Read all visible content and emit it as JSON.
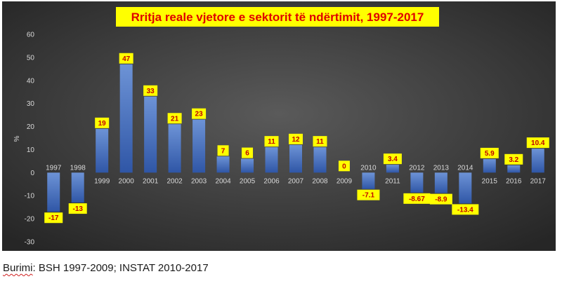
{
  "chart_data": {
    "type": "bar",
    "title": "Rritja reale vjetore e sektorit të ndërtimit, 1997-2017",
    "xlabel": "",
    "ylabel": "%",
    "ylim": [
      -30,
      60
    ],
    "yticks": [
      60,
      50,
      40,
      30,
      20,
      10,
      0,
      -10,
      -20,
      -30
    ],
    "grid": false,
    "legend": "none",
    "categories": [
      "1997",
      "1998",
      "1999",
      "2000",
      "2001",
      "2002",
      "2003",
      "2004",
      "2005",
      "2006",
      "2007",
      "2008",
      "2009",
      "2010",
      "2011",
      "2012",
      "2013",
      "2014",
      "2015",
      "2016",
      "2017"
    ],
    "values": [
      -17,
      -13,
      19,
      47,
      33,
      21,
      23,
      7,
      6,
      11,
      12,
      11,
      0,
      -7.1,
      3.4,
      -8.67,
      -8.9,
      -13.4,
      5.9,
      3.2,
      10.4
    ],
    "data_labels": [
      "-17",
      "-13",
      "19",
      "47",
      "33",
      "21",
      "23",
      "7",
      "6",
      "11",
      "12",
      "11",
      "0",
      "-7.1",
      "3.4",
      "-8.67",
      "-8.9",
      "-13.4",
      "5.9",
      "3.2",
      "10.4"
    ],
    "colors": {
      "background_center": "#5a5a5a",
      "background_edge": "#262626",
      "bar_top": "#6d93d6",
      "bar_bottom": "#2f56a6",
      "label_fill": "#ffff00",
      "label_text": "#c00000",
      "title_fill": "#ffff00",
      "title_text": "#e00000",
      "axis_text": "#d9d9d9"
    }
  },
  "source": {
    "prefix": "Burimi",
    "text": ": BSH 1997-2009; INSTAT 2010-2017"
  }
}
